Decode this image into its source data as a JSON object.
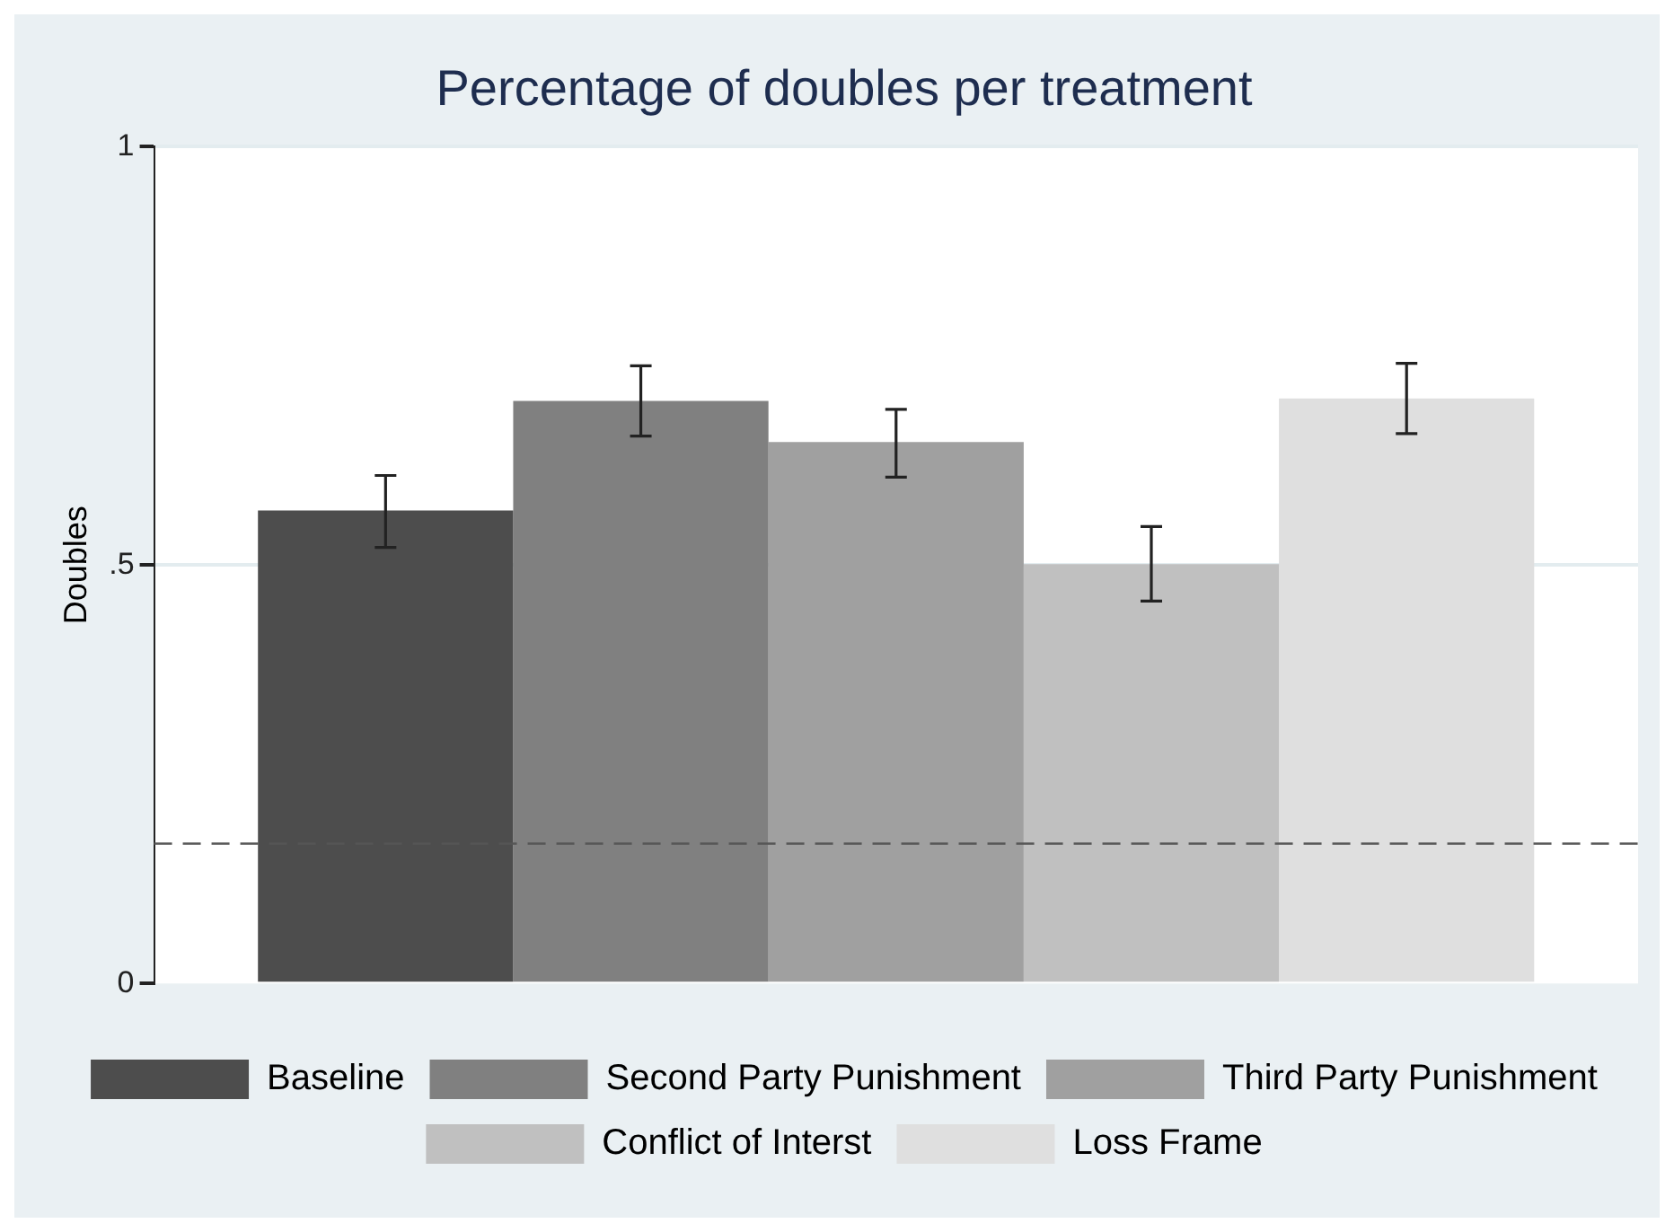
{
  "chart_data": {
    "type": "bar",
    "title": "Percentage of doubles per treatment",
    "ylabel": "Doubles",
    "categories": [
      null
    ],
    "series": [
      {
        "name": "Baseline",
        "color": "#4d4d4d",
        "values": [
          0.565
        ],
        "errors": [
          [
            0.521,
            0.607
          ]
        ]
      },
      {
        "name": "Second Party Punishment",
        "color": "#808080",
        "values": [
          0.696
        ],
        "errors": [
          [
            0.654,
            0.738
          ]
        ]
      },
      {
        "name": "Third Party Punishment",
        "color": "#a0a0a0",
        "values": [
          0.647
        ],
        "errors": [
          [
            0.605,
            0.686
          ]
        ]
      },
      {
        "name": "Conflict of Interst",
        "color": "#c0c0c0",
        "values": [
          0.501
        ],
        "errors": [
          [
            0.457,
            0.546
          ]
        ]
      },
      {
        "name": "Loss Frame",
        "color": "#dfdfdf",
        "values": [
          0.699
        ],
        "errors": [
          [
            0.657,
            0.741
          ]
        ]
      }
    ],
    "ylim": [
      0,
      1
    ],
    "yticks": [
      0,
      {
        "value": 0.5,
        "label": ".5"
      },
      1
    ],
    "grid": "y",
    "legend": "bottom",
    "ref_lines": [
      {
        "axis": "y",
        "value": 0.167,
        "color": "#555555",
        "line_style": "dashed"
      }
    ]
  }
}
